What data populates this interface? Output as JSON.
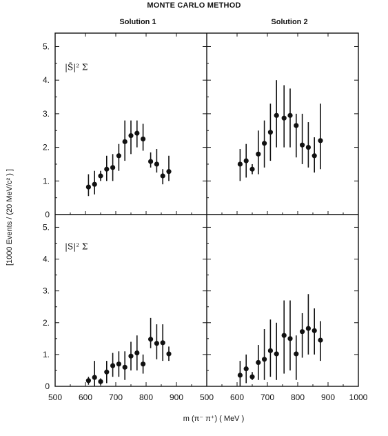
{
  "title": "MONTE CARLO METHOD",
  "column_titles": [
    "Solution 1",
    "Solution 2"
  ],
  "xlabel": "m (π⁻ π⁺)  ( MeV )",
  "ylabel": "[1000 Events / (20 MeV/c² ) ]",
  "xticks_left": [
    "500",
    "600",
    "700",
    "800",
    "900"
  ],
  "xticks_right": [
    "500",
    "600",
    "700",
    "800",
    "900",
    "1000"
  ],
  "yticks_top": [
    "0",
    "1.",
    "2.",
    "3.",
    "4.",
    "5."
  ],
  "yticks_bottom": [
    "0",
    "1.",
    "2.",
    "3.",
    "4.",
    "5."
  ],
  "row_labels": [
    "|S̄|² Σ",
    "|S|² Σ"
  ],
  "chart_data": {
    "type": "scatter",
    "errorbars": true,
    "xlim": [
      500,
      1000
    ],
    "ylim": [
      0,
      5.4
    ],
    "panels": [
      {
        "row": 0,
        "col": 0,
        "label": "|S̄|² Σ",
        "points": [
          {
            "x": 610,
            "y": 0.82,
            "lo": 0.55,
            "hi": 1.2
          },
          {
            "x": 630,
            "y": 0.9,
            "lo": 0.6,
            "hi": 1.3
          },
          {
            "x": 650,
            "y": 1.15,
            "lo": 1.0,
            "hi": 1.3
          },
          {
            "x": 670,
            "y": 1.35,
            "lo": 1.0,
            "hi": 1.75
          },
          {
            "x": 690,
            "y": 1.4,
            "lo": 1.0,
            "hi": 1.8
          },
          {
            "x": 710,
            "y": 1.75,
            "lo": 1.3,
            "hi": 2.1
          },
          {
            "x": 730,
            "y": 2.17,
            "lo": 1.6,
            "hi": 2.8
          },
          {
            "x": 750,
            "y": 2.35,
            "lo": 1.8,
            "hi": 2.8
          },
          {
            "x": 770,
            "y": 2.42,
            "lo": 2.0,
            "hi": 2.8
          },
          {
            "x": 790,
            "y": 2.25,
            "lo": 1.9,
            "hi": 2.7
          },
          {
            "x": 815,
            "y": 1.58,
            "lo": 1.4,
            "hi": 1.85
          },
          {
            "x": 835,
            "y": 1.5,
            "lo": 1.25,
            "hi": 1.95
          },
          {
            "x": 855,
            "y": 1.15,
            "lo": 0.9,
            "hi": 1.35
          },
          {
            "x": 875,
            "y": 1.28,
            "lo": 1.0,
            "hi": 1.75
          }
        ]
      },
      {
        "row": 0,
        "col": 1,
        "label": "",
        "points": [
          {
            "x": 610,
            "y": 1.5,
            "lo": 1.0,
            "hi": 1.95
          },
          {
            "x": 630,
            "y": 1.6,
            "lo": 1.1,
            "hi": 2.1
          },
          {
            "x": 650,
            "y": 1.35,
            "lo": 1.2,
            "hi": 1.5
          },
          {
            "x": 670,
            "y": 1.8,
            "lo": 1.2,
            "hi": 2.5
          },
          {
            "x": 690,
            "y": 2.12,
            "lo": 1.4,
            "hi": 2.8
          },
          {
            "x": 710,
            "y": 2.45,
            "lo": 1.6,
            "hi": 3.3
          },
          {
            "x": 730,
            "y": 2.95,
            "lo": 2.0,
            "hi": 4.0
          },
          {
            "x": 755,
            "y": 2.87,
            "lo": 2.0,
            "hi": 3.85
          },
          {
            "x": 775,
            "y": 2.95,
            "lo": 2.0,
            "hi": 3.75
          },
          {
            "x": 795,
            "y": 2.65,
            "lo": 1.7,
            "hi": 3.0
          },
          {
            "x": 815,
            "y": 2.07,
            "lo": 1.5,
            "hi": 3.0
          },
          {
            "x": 835,
            "y": 2.0,
            "lo": 1.4,
            "hi": 2.75
          },
          {
            "x": 855,
            "y": 1.75,
            "lo": 1.25,
            "hi": 2.3
          },
          {
            "x": 875,
            "y": 2.2,
            "lo": 1.35,
            "hi": 3.3
          }
        ]
      },
      {
        "row": 1,
        "col": 0,
        "label": "|S|² Σ",
        "points": [
          {
            "x": 610,
            "y": 0.18,
            "lo": 0.05,
            "hi": 0.3
          },
          {
            "x": 630,
            "y": 0.28,
            "lo": 0.0,
            "hi": 0.8
          },
          {
            "x": 650,
            "y": 0.15,
            "lo": 0.05,
            "hi": 0.25
          },
          {
            "x": 670,
            "y": 0.45,
            "lo": 0.1,
            "hi": 0.8
          },
          {
            "x": 690,
            "y": 0.65,
            "lo": 0.3,
            "hi": 1.05
          },
          {
            "x": 710,
            "y": 0.7,
            "lo": 0.3,
            "hi": 1.1
          },
          {
            "x": 730,
            "y": 0.6,
            "lo": 0.2,
            "hi": 1.1
          },
          {
            "x": 750,
            "y": 0.95,
            "lo": 0.5,
            "hi": 1.4
          },
          {
            "x": 770,
            "y": 1.05,
            "lo": 0.5,
            "hi": 1.6
          },
          {
            "x": 790,
            "y": 0.7,
            "lo": 0.4,
            "hi": 1.0
          },
          {
            "x": 815,
            "y": 1.48,
            "lo": 1.2,
            "hi": 2.15
          },
          {
            "x": 835,
            "y": 1.35,
            "lo": 0.85,
            "hi": 1.95
          },
          {
            "x": 855,
            "y": 1.37,
            "lo": 0.8,
            "hi": 1.95
          },
          {
            "x": 875,
            "y": 1.02,
            "lo": 0.8,
            "hi": 1.25
          }
        ]
      },
      {
        "row": 1,
        "col": 1,
        "label": "",
        "points": [
          {
            "x": 610,
            "y": 0.35,
            "lo": 0.0,
            "hi": 0.8
          },
          {
            "x": 630,
            "y": 0.55,
            "lo": 0.1,
            "hi": 1.0
          },
          {
            "x": 650,
            "y": 0.3,
            "lo": 0.2,
            "hi": 0.45
          },
          {
            "x": 670,
            "y": 0.75,
            "lo": 0.2,
            "hi": 1.3
          },
          {
            "x": 690,
            "y": 0.85,
            "lo": 0.2,
            "hi": 1.8
          },
          {
            "x": 710,
            "y": 1.12,
            "lo": 0.3,
            "hi": 2.1
          },
          {
            "x": 730,
            "y": 1.02,
            "lo": 0.2,
            "hi": 2.0
          },
          {
            "x": 755,
            "y": 1.6,
            "lo": 0.4,
            "hi": 2.7
          },
          {
            "x": 775,
            "y": 1.5,
            "lo": 0.5,
            "hi": 2.7
          },
          {
            "x": 795,
            "y": 1.02,
            "lo": 0.2,
            "hi": 1.6
          },
          {
            "x": 815,
            "y": 1.72,
            "lo": 0.9,
            "hi": 2.3
          },
          {
            "x": 835,
            "y": 1.82,
            "lo": 1.0,
            "hi": 2.9
          },
          {
            "x": 855,
            "y": 1.75,
            "lo": 1.0,
            "hi": 2.45
          },
          {
            "x": 875,
            "y": 1.45,
            "lo": 0.8,
            "hi": 2.05
          }
        ]
      }
    ]
  }
}
